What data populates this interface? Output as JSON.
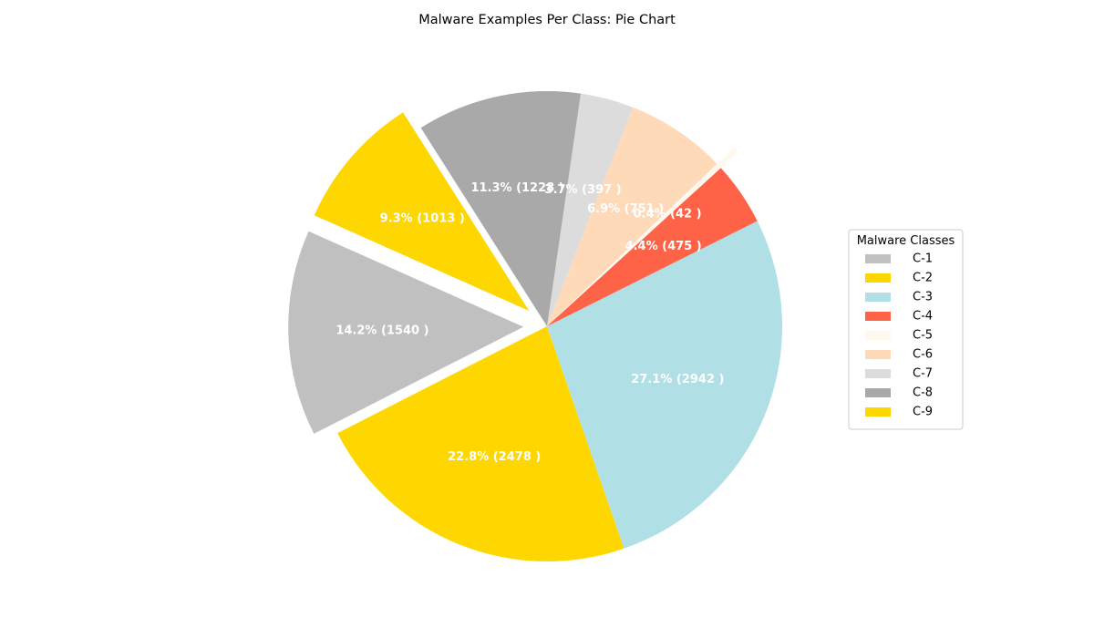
{
  "chart_data": {
    "type": "pie",
    "title": "Malware Examples Per Class: Pie Chart",
    "legend": {
      "title": "Malware Classes",
      "placement": "center-right"
    },
    "start_angle_deg": 156,
    "direction": "counterclockwise",
    "slices": [
      {
        "name": "C-1",
        "value": 1540,
        "label": "14.2% (1540 )",
        "color": "#c0c0c0",
        "exploded": true
      },
      {
        "name": "C-2",
        "value": 2478,
        "label": "22.8% (2478 )",
        "color": "#ffd700",
        "exploded": false
      },
      {
        "name": "C-3",
        "value": 2942,
        "label": "27.1% (2942 )",
        "color": "#b0e0e6",
        "exploded": false
      },
      {
        "name": "C-4",
        "value": 475,
        "label": "4.4% (475 )",
        "color": "#ff6347",
        "exploded": false
      },
      {
        "name": "C-5",
        "value": 42,
        "label": "0.4% (42 )",
        "color": "#fff8ee",
        "exploded": true
      },
      {
        "name": "C-6",
        "value": 751,
        "label": "6.9% (751 )",
        "color": "#ffdab9",
        "exploded": false
      },
      {
        "name": "C-7",
        "value": 397,
        "label": "3.7% (397 )",
        "color": "#dcdcdc",
        "exploded": false
      },
      {
        "name": "C-8",
        "value": 1228,
        "label": "11.3% (1228 )",
        "color": "#a9a9a9",
        "exploded": false
      },
      {
        "name": "C-9",
        "value": 1013,
        "label": "9.3% (1013 )",
        "color": "#ffd700",
        "exploded": true
      }
    ]
  }
}
